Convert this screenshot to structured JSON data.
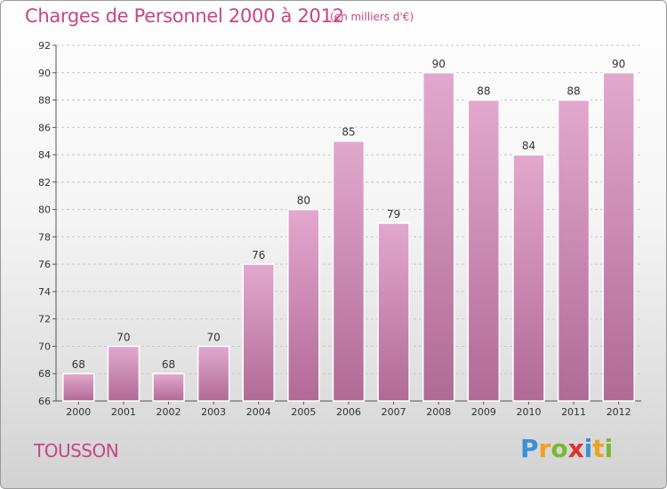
{
  "header": {
    "title": "Charges de Personnel 2000 à 2012",
    "subtitle": "(en milliers d'€)"
  },
  "footer": {
    "place": "TOUSSON",
    "logo": [
      "P",
      "r",
      "o",
      "x",
      "i",
      "t",
      "i"
    ]
  },
  "colors": {
    "title": "#c8467e",
    "bar_top": "#e3a8cd",
    "bar_bottom": "#b06a96"
  },
  "chart_data": {
    "type": "bar",
    "title": "Charges de Personnel 2000 à 2012",
    "subtitle": "(en milliers d'€)",
    "categories": [
      "2000",
      "2001",
      "2002",
      "2003",
      "2004",
      "2005",
      "2006",
      "2007",
      "2008",
      "2009",
      "2010",
      "2011",
      "2012"
    ],
    "values": [
      68,
      70,
      68,
      70,
      76,
      80,
      85,
      79,
      90,
      88,
      84,
      88,
      90
    ],
    "yticks": [
      66,
      68,
      70,
      72,
      74,
      76,
      78,
      80,
      82,
      84,
      86,
      88,
      90,
      92
    ],
    "ylim": [
      66,
      92
    ],
    "grid": true,
    "data_labels": true
  }
}
